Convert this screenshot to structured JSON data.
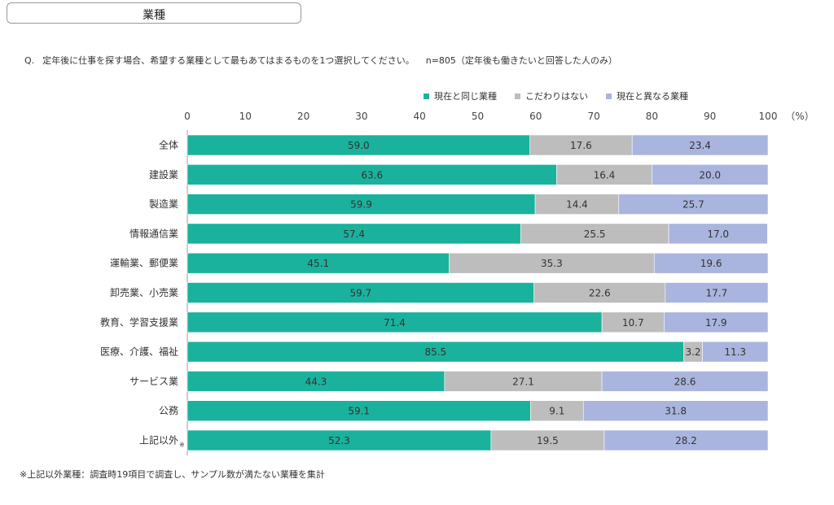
{
  "header": {
    "tag": "業種"
  },
  "question": {
    "prefix": "Q.",
    "text": "定年後に仕事を探す場合、希望する業種として最もあてはまるものを1つ選択してください。",
    "note": "n=805（定年後も働きたいと回答した人のみ）"
  },
  "footnote": "※上記以外業種：調査時19項目で調査し、サンプル数が満たない業種を集計",
  "colors": {
    "same": "#1ab29c",
    "none": "#bdbdbd",
    "diff": "#a9b5de"
  },
  "chart_data": {
    "type": "bar",
    "orientation": "horizontal",
    "stacked": true,
    "unit_label": "（%）",
    "xlim": [
      0,
      100
    ],
    "xticks": [
      "0",
      "10",
      "20",
      "30",
      "40",
      "50",
      "60",
      "70",
      "80",
      "90",
      "100"
    ],
    "categories": [
      "全体",
      "建設業",
      "製造業",
      "情報通信業",
      "運輸業、郵便業",
      "卸売業、小売業",
      "教育、学習支援業",
      "医療、介護、福祉",
      "サービス業",
      "公務",
      "上記以外"
    ],
    "category_marks": [
      "",
      "",
      "",
      "",
      "",
      "",
      "",
      "",
      "",
      "",
      "※"
    ],
    "series": [
      {
        "name": "現在と同じ業種",
        "color": "#1ab29c",
        "values": [
          59.0,
          63.6,
          59.9,
          57.4,
          45.1,
          59.7,
          71.4,
          85.5,
          44.3,
          59.1,
          52.3
        ]
      },
      {
        "name": "こだわりはない",
        "color": "#bdbdbd",
        "values": [
          17.6,
          16.4,
          14.4,
          25.5,
          35.3,
          22.6,
          10.7,
          3.2,
          27.1,
          9.1,
          19.5
        ]
      },
      {
        "name": "現在と異なる業種",
        "color": "#a9b5de",
        "values": [
          23.4,
          20.0,
          25.7,
          17.0,
          19.6,
          17.7,
          17.9,
          11.3,
          28.6,
          31.8,
          28.2
        ]
      }
    ],
    "legend_position": "top-right",
    "grid": false
  }
}
